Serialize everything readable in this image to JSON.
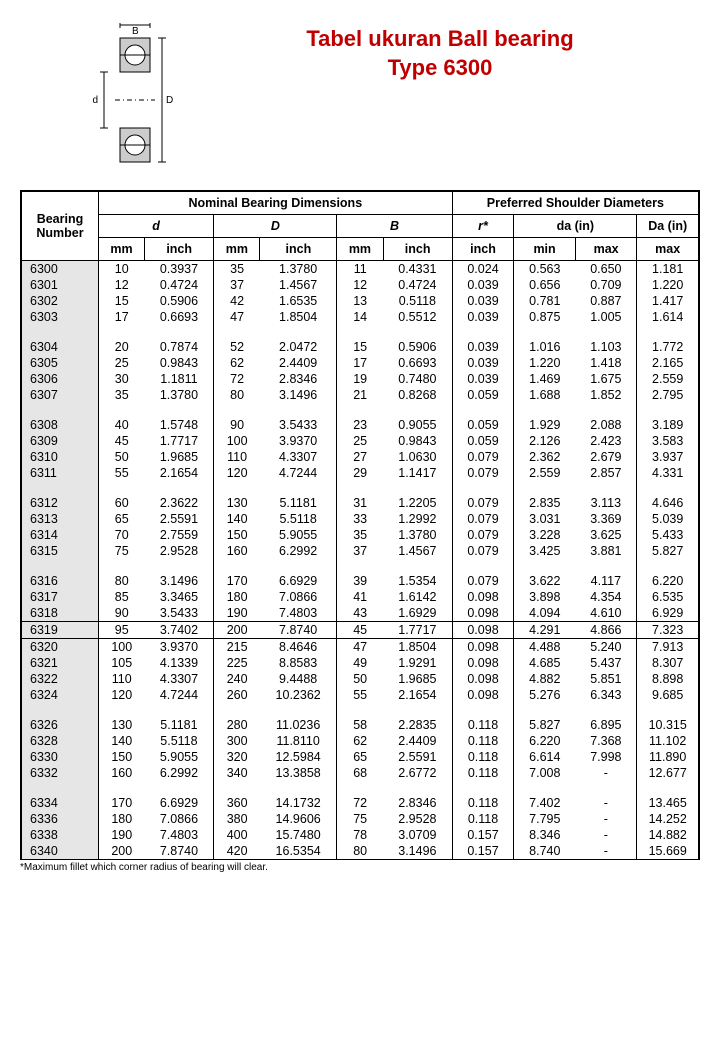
{
  "title_line1": "Tabel ukuran Ball bearing",
  "title_line2": "Type 6300",
  "title_color": "#c00000",
  "footnote": "*Maximum fillet which corner radius of bearing will clear.",
  "diagram": {
    "dim_B": "B",
    "dim_d": "d",
    "dim_D": "D"
  },
  "headers": {
    "bearing_number": "Bearing Number",
    "nominal": "Nominal Bearing Dimensions",
    "preferred": "Preferred Shoulder Diameters",
    "d": "d",
    "D": "D",
    "B": "B",
    "r": "r*",
    "da": "da (in)",
    "Da": "Da (in)",
    "mm": "mm",
    "inch": "inch",
    "min": "min",
    "max": "max"
  },
  "table_style": {
    "header_bg": "#ffffff",
    "row_label_bg": "#e6e6e6",
    "border_color": "#000000",
    "fontsize": 12.5,
    "header_fontweight": "bold"
  },
  "groups": [
    [
      [
        "6300",
        "10",
        "0.3937",
        "35",
        "1.3780",
        "11",
        "0.4331",
        "0.024",
        "0.563",
        "0.650",
        "1.181"
      ],
      [
        "6301",
        "12",
        "0.4724",
        "37",
        "1.4567",
        "12",
        "0.4724",
        "0.039",
        "0.656",
        "0.709",
        "1.220"
      ],
      [
        "6302",
        "15",
        "0.5906",
        "42",
        "1.6535",
        "13",
        "0.5118",
        "0.039",
        "0.781",
        "0.887",
        "1.417"
      ],
      [
        "6303",
        "17",
        "0.6693",
        "47",
        "1.8504",
        "14",
        "0.5512",
        "0.039",
        "0.875",
        "1.005",
        "1.614"
      ]
    ],
    [
      [
        "6304",
        "20",
        "0.7874",
        "52",
        "2.0472",
        "15",
        "0.5906",
        "0.039",
        "1.016",
        "1.103",
        "1.772"
      ],
      [
        "6305",
        "25",
        "0.9843",
        "62",
        "2.4409",
        "17",
        "0.6693",
        "0.039",
        "1.220",
        "1.418",
        "2.165"
      ],
      [
        "6306",
        "30",
        "1.1811",
        "72",
        "2.8346",
        "19",
        "0.7480",
        "0.039",
        "1.469",
        "1.675",
        "2.559"
      ],
      [
        "6307",
        "35",
        "1.3780",
        "80",
        "3.1496",
        "21",
        "0.8268",
        "0.059",
        "1.688",
        "1.852",
        "2.795"
      ]
    ],
    [
      [
        "6308",
        "40",
        "1.5748",
        "90",
        "3.5433",
        "23",
        "0.9055",
        "0.059",
        "1.929",
        "2.088",
        "3.189"
      ],
      [
        "6309",
        "45",
        "1.7717",
        "100",
        "3.9370",
        "25",
        "0.9843",
        "0.059",
        "2.126",
        "2.423",
        "3.583"
      ],
      [
        "6310",
        "50",
        "1.9685",
        "110",
        "4.3307",
        "27",
        "1.0630",
        "0.079",
        "2.362",
        "2.679",
        "3.937"
      ],
      [
        "6311",
        "55",
        "2.1654",
        "120",
        "4.7244",
        "29",
        "1.1417",
        "0.079",
        "2.559",
        "2.857",
        "4.331"
      ]
    ],
    [
      [
        "6312",
        "60",
        "2.3622",
        "130",
        "5.1181",
        "31",
        "1.2205",
        "0.079",
        "2.835",
        "3.113",
        "4.646"
      ],
      [
        "6313",
        "65",
        "2.5591",
        "140",
        "5.5118",
        "33",
        "1.2992",
        "0.079",
        "3.031",
        "3.369",
        "5.039"
      ],
      [
        "6314",
        "70",
        "2.7559",
        "150",
        "5.9055",
        "35",
        "1.3780",
        "0.079",
        "3.228",
        "3.625",
        "5.433"
      ],
      [
        "6315",
        "75",
        "2.9528",
        "160",
        "6.2992",
        "37",
        "1.4567",
        "0.079",
        "3.425",
        "3.881",
        "5.827"
      ]
    ],
    [
      [
        "6316",
        "80",
        "3.1496",
        "170",
        "6.6929",
        "39",
        "1.5354",
        "0.079",
        "3.622",
        "4.117",
        "6.220"
      ],
      [
        "6317",
        "85",
        "3.3465",
        "180",
        "7.0866",
        "41",
        "1.6142",
        "0.098",
        "3.898",
        "4.354",
        "6.535"
      ],
      [
        "6318",
        "90",
        "3.5433",
        "190",
        "7.4803",
        "43",
        "1.6929",
        "0.098",
        "4.094",
        "4.610",
        "6.929"
      ]
    ],
    [
      [
        "6319",
        "95",
        "3.7402",
        "200",
        "7.8740",
        "45",
        "1.7717",
        "0.098",
        "4.291",
        "4.866",
        "7.323"
      ]
    ],
    [
      [
        "6320",
        "100",
        "3.9370",
        "215",
        "8.4646",
        "47",
        "1.8504",
        "0.098",
        "4.488",
        "5.240",
        "7.913"
      ],
      [
        "6321",
        "105",
        "4.1339",
        "225",
        "8.8583",
        "49",
        "1.9291",
        "0.098",
        "4.685",
        "5.437",
        "8.307"
      ],
      [
        "6322",
        "110",
        "4.3307",
        "240",
        "9.4488",
        "50",
        "1.9685",
        "0.098",
        "4.882",
        "5.851",
        "8.898"
      ],
      [
        "6324",
        "120",
        "4.7244",
        "260",
        "10.2362",
        "55",
        "2.1654",
        "0.098",
        "5.276",
        "6.343",
        "9.685"
      ]
    ],
    [
      [
        "6326",
        "130",
        "5.1181",
        "280",
        "11.0236",
        "58",
        "2.2835",
        "0.118",
        "5.827",
        "6.895",
        "10.315"
      ],
      [
        "6328",
        "140",
        "5.5118",
        "300",
        "11.8110",
        "62",
        "2.4409",
        "0.118",
        "6.220",
        "7.368",
        "11.102"
      ],
      [
        "6330",
        "150",
        "5.9055",
        "320",
        "12.5984",
        "65",
        "2.5591",
        "0.118",
        "6.614",
        "7.998",
        "11.890"
      ],
      [
        "6332",
        "160",
        "6.2992",
        "340",
        "13.3858",
        "68",
        "2.6772",
        "0.118",
        "7.008",
        "-",
        "12.677"
      ]
    ],
    [
      [
        "6334",
        "170",
        "6.6929",
        "360",
        "14.1732",
        "72",
        "2.8346",
        "0.118",
        "7.402",
        "-",
        "13.465"
      ],
      [
        "6336",
        "180",
        "7.0866",
        "380",
        "14.9606",
        "75",
        "2.9528",
        "0.118",
        "7.795",
        "-",
        "14.252"
      ],
      [
        "6338",
        "190",
        "7.4803",
        "400",
        "15.7480",
        "78",
        "3.0709",
        "0.157",
        "8.346",
        "-",
        "14.882"
      ],
      [
        "6340",
        "200",
        "7.8740",
        "420",
        "16.5354",
        "80",
        "3.1496",
        "0.157",
        "8.740",
        "-",
        "15.669"
      ]
    ]
  ],
  "col_borders_after": [
    0,
    2,
    4,
    6,
    7,
    9,
    10
  ]
}
